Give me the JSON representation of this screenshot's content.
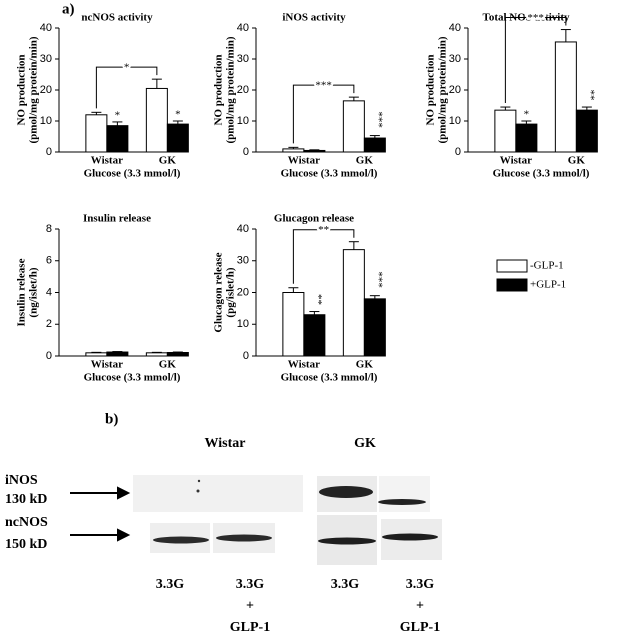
{
  "figure": {
    "panel_a": "a)"
  },
  "chart_data": [
    {
      "type": "bar",
      "title": "ncNOS activity",
      "ylabel": [
        "NO production",
        "(pmol/mg protein/min)"
      ],
      "xlabel": "Glucose (3.3 mmol/l)",
      "categories": [
        "Wistar",
        "GK"
      ],
      "ylim": [
        0,
        40
      ],
      "yticks": [
        0,
        10,
        20,
        30,
        40
      ],
      "bracket_label": "*",
      "series": [
        {
          "color": "#ffffff",
          "values": [
            12,
            20.5
          ],
          "errors": [
            0.8,
            3
          ]
        },
        {
          "color": "#000000",
          "values": [
            8.5,
            9
          ],
          "errors": [
            1.2,
            1
          ],
          "stars": [
            "*",
            "*"
          ]
        }
      ]
    },
    {
      "type": "bar",
      "title": "iNOS activity",
      "ylabel": [
        "NO production",
        "(pmol/mg protein/min)"
      ],
      "xlabel": "Glucose (3.3 mmol/l)",
      "categories": [
        "Wistar",
        "GK"
      ],
      "ylim": [
        0,
        40
      ],
      "yticks": [
        0,
        10,
        20,
        30,
        40
      ],
      "bracket_label": "***",
      "series": [
        {
          "color": "#ffffff",
          "values": [
            1,
            16.5
          ],
          "errors": [
            0.5,
            1.2
          ]
        },
        {
          "color": "#000000",
          "values": [
            0.5,
            4.5
          ],
          "errors": [
            0.2,
            0.8
          ],
          "stars": [
            null,
            "***"
          ]
        }
      ]
    },
    {
      "type": "bar",
      "title": "Total NOS activity",
      "ylabel": [
        "NO production",
        "(pmol/mg protein/min)"
      ],
      "xlabel": "Glucose (3.3 mmol/l)",
      "categories": [
        "Wistar",
        "GK"
      ],
      "ylim": [
        0,
        40
      ],
      "yticks": [
        0,
        10,
        20,
        30,
        40
      ],
      "bracket_label": "***",
      "series": [
        {
          "color": "#ffffff",
          "values": [
            13.5,
            35.5
          ],
          "errors": [
            1,
            4
          ]
        },
        {
          "color": "#000000",
          "values": [
            9,
            13.5
          ],
          "errors": [
            1,
            1
          ],
          "stars": [
            "*",
            "**"
          ]
        }
      ]
    },
    {
      "type": "bar",
      "title": "Insulin release",
      "ylabel": [
        "Insulin release",
        "(ng/islet/h)"
      ],
      "xlabel": "Glucose (3.3 mmol/l)",
      "categories": [
        "Wistar",
        "GK"
      ],
      "ylim": [
        0,
        8
      ],
      "yticks": [
        0,
        2,
        4,
        6,
        8
      ],
      "series": [
        {
          "color": "#ffffff",
          "values": [
            0.2,
            0.2
          ],
          "errors": [
            0.03,
            0.03
          ]
        },
        {
          "color": "#000000",
          "values": [
            0.25,
            0.22
          ],
          "errors": [
            0.03,
            0.03
          ]
        }
      ]
    },
    {
      "type": "bar",
      "title": "Glucagon release",
      "ylabel": [
        "Glucagon release",
        "(pg/islet/h)"
      ],
      "xlabel": "Glucose (3.3 mmol/l)",
      "categories": [
        "Wistar",
        "GK"
      ],
      "ylim": [
        0,
        40
      ],
      "yticks": [
        0,
        10,
        20,
        30,
        40
      ],
      "bracket_label": "**",
      "series": [
        {
          "name": "-GLP-1",
          "color": "#ffffff",
          "values": [
            20,
            33.5
          ],
          "errors": [
            1.5,
            2.5
          ]
        },
        {
          "name": "+GLP-1",
          "color": "#000000",
          "values": [
            13,
            18
          ],
          "errors": [
            1,
            1
          ],
          "stars": [
            "**",
            "***"
          ]
        }
      ]
    }
  ],
  "blot": {
    "panel_label": "b)",
    "groups": [
      "Wistar",
      "GK"
    ],
    "rows": [
      {
        "name": "iNOS",
        "size": "130 kD"
      },
      {
        "name": "ncNOS",
        "size": "150 kD"
      }
    ],
    "lanes": [
      [
        "3.3G"
      ],
      [
        "3.3G",
        "+",
        "GLP-1"
      ],
      [
        "3.3G"
      ],
      [
        "3.3G",
        "+",
        "GLP-1"
      ]
    ]
  }
}
